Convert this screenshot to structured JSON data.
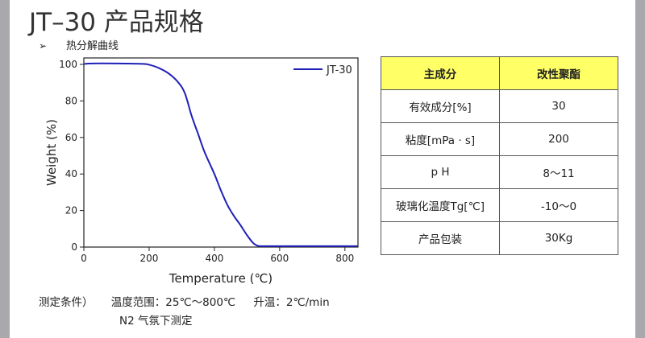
{
  "page": {
    "title": "JT–30 产品规格",
    "bullet_icon": "arrow-bullet-icon",
    "bullet_text": "热分解曲线",
    "conditions": {
      "label": "测定条件）",
      "temp_range": "温度范围：25℃～800℃",
      "heating_rate": "升温：2℃/min",
      "atmosphere": "N2 气氛下测定"
    }
  },
  "chart_data": {
    "type": "line",
    "xlabel": "Temperature (℃)",
    "ylabel": "Weight (%)",
    "xlim": [
      0,
      840
    ],
    "ylim": [
      0,
      102
    ],
    "xticks": [
      0,
      200,
      400,
      600,
      800
    ],
    "yticks": [
      0,
      20,
      40,
      60,
      80,
      100
    ],
    "grid": false,
    "legend_position": "top-right",
    "line_color": "#1f1fb8",
    "series": [
      {
        "name": "JT-30",
        "x": [
          0,
          25,
          100,
          180,
          200,
          230,
          260,
          290,
          310,
          330,
          350,
          370,
          400,
          420,
          440,
          460,
          480,
          500,
          520,
          535,
          550,
          600,
          700,
          840
        ],
        "y": [
          100.2,
          100.5,
          100.5,
          100.3,
          99.8,
          98.0,
          95.0,
          90.0,
          84.0,
          72.0,
          62.0,
          52.0,
          40.0,
          31.0,
          23.0,
          17.0,
          12.0,
          6.5,
          2.0,
          0.6,
          0.5,
          0.5,
          0.5,
          0.5
        ]
      }
    ]
  },
  "table": {
    "headers": [
      "主成分",
      "改性聚酯"
    ],
    "header_color": "#ffff66",
    "rows": [
      [
        "有效成分[%]",
        "30"
      ],
      [
        "粘度[mPa · s]",
        "200"
      ],
      [
        "p H",
        "8～11"
      ],
      [
        "玻璃化温度Tg[℃]",
        "-10～0"
      ],
      [
        "产品包装",
        "30Kg"
      ]
    ]
  }
}
